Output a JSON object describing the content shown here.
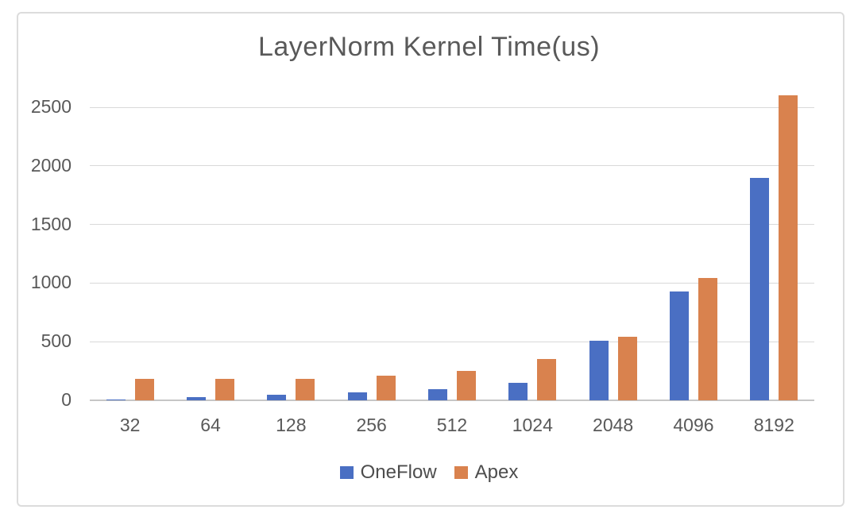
{
  "chart_data": {
    "type": "bar",
    "title": "LayerNorm Kernel Time(us)",
    "xlabel": "",
    "ylabel": "",
    "categories": [
      "32",
      "64",
      "128",
      "256",
      "512",
      "1024",
      "2048",
      "4096",
      "8192"
    ],
    "series": [
      {
        "name": "OneFlow",
        "color": "#4a6fc3",
        "values": [
          10,
          25,
          48,
          68,
          95,
          150,
          505,
          925,
          1900
        ]
      },
      {
        "name": "Apex",
        "color": "#d9824e",
        "values": [
          180,
          183,
          185,
          207,
          248,
          350,
          545,
          1045,
          2600
        ]
      }
    ],
    "ylim": [
      0,
      2500
    ],
    "yticks": [
      0,
      500,
      1000,
      1500,
      2000,
      2500
    ],
    "grid": "horizontal",
    "legend_position": "bottom",
    "text_color": "#595959",
    "gridline_color": "#d9d9d9",
    "frame_border_color": "#dcdcdc"
  }
}
